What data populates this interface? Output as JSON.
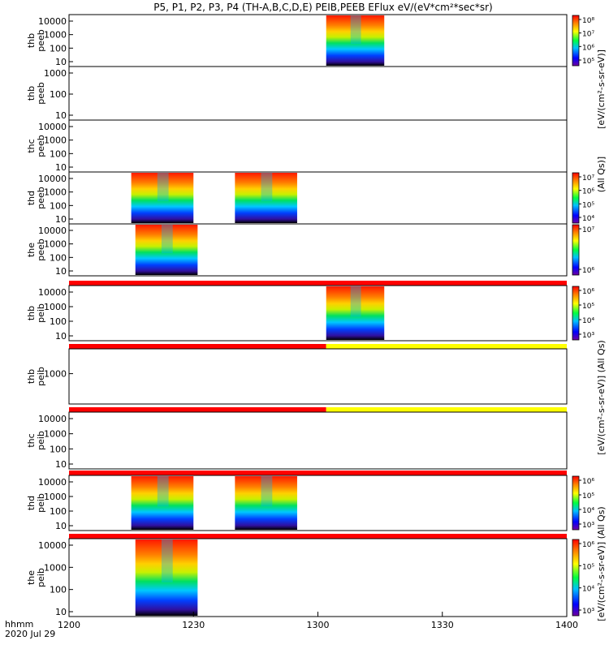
{
  "title": "P5, P1, P2, P3, P4 (TH-A,B,C,D,E) PEIB,PEEB EFlux eV/(eV*cm²*sec*sr)",
  "footer": {
    "time_label": "hhmm",
    "date_label": "2020 Jul 29"
  },
  "colorbar_labels": {
    "peeb_top": "[eV/(cm²-s-sr-eV)]",
    "peeb_bottom": "(All Qs)]",
    "peib_top": "[eV/(cm²-s-sr-eV)] (All Qs)",
    "peib_bottom": "[eV/(cm²-s-sr-eV)] (All Qs)"
  },
  "colors": {
    "quality_red": "#ff0000",
    "quality_yellow": "#ffff00",
    "frame": "#000000"
  },
  "chart_data": {
    "type": "heatmap",
    "x_axis": {
      "range_hhmm": [
        "1200",
        "1400"
      ],
      "ticks": [
        "1200",
        "1230",
        "1300",
        "1330",
        "1400"
      ]
    },
    "panels": [
      {
        "ylabel": [
          "thb",
          "peeb"
        ],
        "yticks": [
          "10",
          "100",
          "1000",
          "10000"
        ],
        "blocks": [
          [
            "1302",
            "1316"
          ]
        ],
        "colorbar": [
          "10⁵",
          "10⁶",
          "10⁷",
          "10⁸"
        ]
      },
      {
        "ylabel": [
          "thb",
          "peeb"
        ],
        "yticks": [
          "10",
          "100",
          "1000"
        ],
        "blocks": [],
        "colorbar": []
      },
      {
        "ylabel": [
          "thc",
          "peeb"
        ],
        "yticks": [
          "10",
          "100",
          "1000",
          "10000"
        ],
        "blocks": [],
        "colorbar": []
      },
      {
        "ylabel": [
          "thd",
          "peeb"
        ],
        "yticks": [
          "10",
          "100",
          "1000",
          "10000"
        ],
        "blocks": [
          [
            "1215",
            "1230"
          ],
          [
            "1240",
            "1255"
          ]
        ],
        "colorbar": [
          "10⁴",
          "10⁵",
          "10⁶",
          "10⁷"
        ]
      },
      {
        "ylabel": [
          "the",
          "peeb"
        ],
        "yticks": [
          "10",
          "100",
          "1000",
          "10000"
        ],
        "blocks": [
          [
            "1216",
            "1231"
          ]
        ],
        "colorbar": [
          "10⁶",
          "10⁷"
        ]
      },
      {
        "ylabel": [
          "thb",
          "peib"
        ],
        "yticks": [
          "10",
          "100",
          "1000",
          "10000"
        ],
        "blocks": [
          [
            "1302",
            "1316"
          ]
        ],
        "colorbar": [
          "10³",
          "10⁴",
          "10⁵",
          "10⁶"
        ],
        "quality_bar": [
          [
            "1200",
            "1400",
            "red"
          ]
        ]
      },
      {
        "ylabel": [
          "thb",
          "peib"
        ],
        "yticks": [
          "1000"
        ],
        "blocks": [],
        "colorbar": [],
        "quality_bar": [
          [
            "1200",
            "1302",
            "red"
          ],
          [
            "1302",
            "1400",
            "yellow"
          ]
        ]
      },
      {
        "ylabel": [
          "thc",
          "peib"
        ],
        "yticks": [
          "10",
          "100",
          "1000",
          "10000"
        ],
        "blocks": [],
        "colorbar": [],
        "quality_bar": [
          [
            "1200",
            "1302",
            "red"
          ],
          [
            "1302",
            "1400",
            "yellow"
          ]
        ]
      },
      {
        "ylabel": [
          "thd",
          "peib"
        ],
        "yticks": [
          "10",
          "100",
          "1000",
          "10000"
        ],
        "blocks": [
          [
            "1215",
            "1230"
          ],
          [
            "1240",
            "1255"
          ]
        ],
        "colorbar": [
          "10³",
          "10⁴",
          "10⁵",
          "10⁶"
        ],
        "quality_bar": [
          [
            "1200",
            "1400",
            "red"
          ]
        ]
      },
      {
        "ylabel": [
          "the",
          "peib"
        ],
        "yticks": [
          "10",
          "100",
          "1000",
          "10000"
        ],
        "blocks": [
          [
            "1216",
            "1231"
          ]
        ],
        "colorbar": [
          "10³",
          "10⁴",
          "10⁵",
          "10⁶"
        ],
        "quality_bar": [
          [
            "1200",
            "1400",
            "red"
          ]
        ]
      }
    ]
  }
}
